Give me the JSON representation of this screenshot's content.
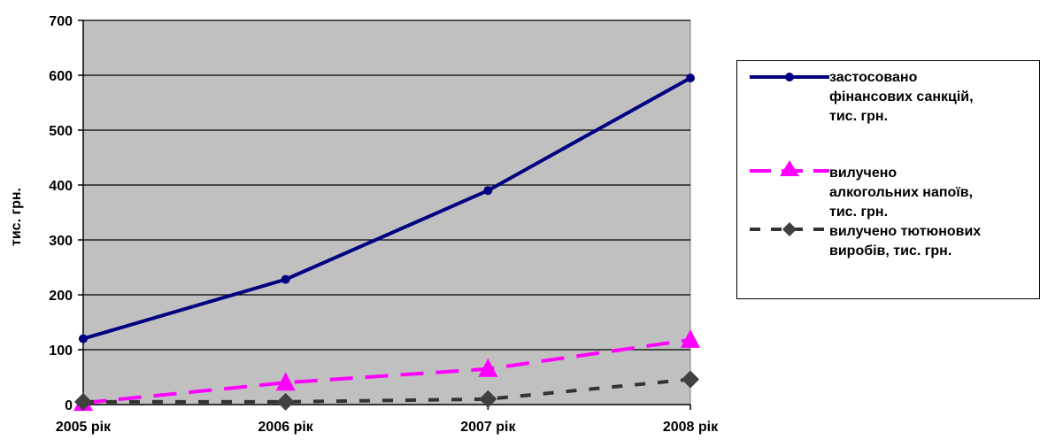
{
  "chart_data": {
    "type": "line",
    "categories": [
      "2005 рік",
      "2006 рік",
      "2007 рік",
      "2008 рік"
    ],
    "ylabel": "тис. грн.",
    "ylim": [
      0,
      700
    ],
    "yticks": [
      "0",
      "100",
      "200",
      "300",
      "400",
      "500",
      "600",
      "700"
    ],
    "ytick_values": [
      0,
      100,
      200,
      300,
      400,
      500,
      600,
      700
    ],
    "grid": true,
    "legend_position": "right",
    "series": [
      {
        "name": "застосовано фінансових санкцій, тис. грн.",
        "values": [
          120,
          228,
          390,
          595
        ],
        "color": "#000080",
        "marker": "circle",
        "dash": "solid"
      },
      {
        "name": "вилучено алкогольних напоїв, тис. грн.",
        "values": [
          3,
          40,
          65,
          118
        ],
        "color": "#ff00ff",
        "marker": "triangle",
        "dash": "dashed"
      },
      {
        "name": "вилучено тютюнових виробів, тис. грн.",
        "values": [
          5,
          5,
          10,
          46
        ],
        "color": "#333333",
        "marker": "diamond",
        "dash": "dotted"
      }
    ],
    "plot_background": "#c0c0c0"
  }
}
